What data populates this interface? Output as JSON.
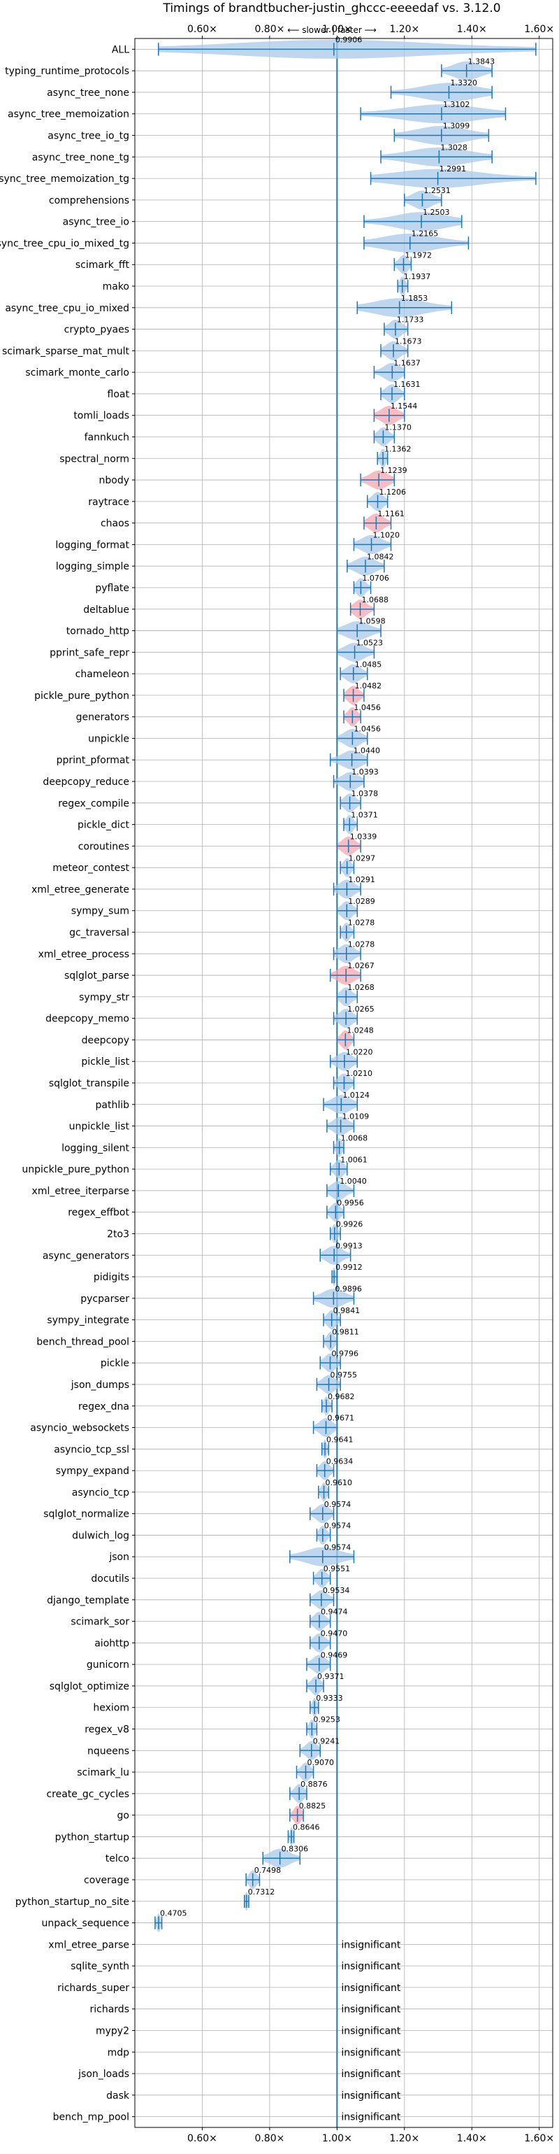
{
  "chart_data": {
    "type": "violin",
    "title": "Timings of brandtbucher-justin_ghccc-eeeedaf vs. 3.12.0",
    "subtitle": "⟵ slower | faster ⟶",
    "xlim": [
      0.4,
      1.64
    ],
    "xticks": [
      0.6,
      0.8,
      1.0,
      1.2,
      1.4,
      1.6
    ],
    "xtick_labels": [
      "0.60×",
      "0.80×",
      "1.00×",
      "1.20×",
      "1.40×",
      "1.60×"
    ],
    "reference_line": 1.0,
    "grid": true,
    "insignificant_label": "insignificant",
    "colors": {
      "violin": "#a8c8e8",
      "highlight": "#f4a6b0",
      "line": "#1f77b4",
      "grid": "#b0b0b0"
    },
    "benchmarks": [
      {
        "name": "ALL",
        "value": 0.9906,
        "min": 0.47,
        "max": 1.59,
        "label": "0.9906"
      },
      {
        "name": "typing_runtime_protocols",
        "value": 1.3843,
        "min": 1.31,
        "max": 1.46,
        "label": "1.3843"
      },
      {
        "name": "async_tree_none",
        "value": 1.332,
        "min": 1.16,
        "max": 1.46,
        "label": "1.3320"
      },
      {
        "name": "async_tree_memoization",
        "value": 1.3102,
        "min": 1.07,
        "max": 1.5,
        "label": "1.3102"
      },
      {
        "name": "async_tree_io_tg",
        "value": 1.3099,
        "min": 1.17,
        "max": 1.45,
        "label": "1.3099"
      },
      {
        "name": "async_tree_none_tg",
        "value": 1.3028,
        "min": 1.13,
        "max": 1.46,
        "label": "1.3028"
      },
      {
        "name": "async_tree_memoization_tg",
        "value": 1.2991,
        "min": 1.1,
        "max": 1.59,
        "label": "1.2991"
      },
      {
        "name": "comprehensions",
        "value": 1.2531,
        "min": 1.2,
        "max": 1.31,
        "label": "1.2531"
      },
      {
        "name": "async_tree_io",
        "value": 1.2503,
        "min": 1.08,
        "max": 1.37,
        "label": "1.2503"
      },
      {
        "name": "async_tree_cpu_io_mixed_tg",
        "value": 1.2165,
        "min": 1.08,
        "max": 1.39,
        "label": "1.2165"
      },
      {
        "name": "scimark_fft",
        "value": 1.1972,
        "min": 1.17,
        "max": 1.22,
        "label": "1.1972"
      },
      {
        "name": "mako",
        "value": 1.1937,
        "min": 1.18,
        "max": 1.21,
        "label": "1.1937"
      },
      {
        "name": "async_tree_cpu_io_mixed",
        "value": 1.1853,
        "min": 1.06,
        "max": 1.34,
        "label": "1.1853"
      },
      {
        "name": "crypto_pyaes",
        "value": 1.1733,
        "min": 1.14,
        "max": 1.21,
        "label": "1.1733"
      },
      {
        "name": "scimark_sparse_mat_mult",
        "value": 1.1673,
        "min": 1.13,
        "max": 1.21,
        "label": "1.1673"
      },
      {
        "name": "scimark_monte_carlo",
        "value": 1.1637,
        "min": 1.11,
        "max": 1.2,
        "label": "1.1637"
      },
      {
        "name": "float",
        "value": 1.1631,
        "min": 1.13,
        "max": 1.2,
        "label": "1.1631"
      },
      {
        "name": "tomli_loads",
        "value": 1.1544,
        "min": 1.11,
        "max": 1.2,
        "label": "1.1544",
        "highlight": true
      },
      {
        "name": "fannkuch",
        "value": 1.137,
        "min": 1.11,
        "max": 1.17,
        "label": "1.1370"
      },
      {
        "name": "spectral_norm",
        "value": 1.1362,
        "min": 1.12,
        "max": 1.15,
        "label": "1.1362"
      },
      {
        "name": "nbody",
        "value": 1.1239,
        "min": 1.07,
        "max": 1.17,
        "label": "1.1239",
        "highlight": true
      },
      {
        "name": "raytrace",
        "value": 1.1206,
        "min": 1.09,
        "max": 1.15,
        "label": "1.1206"
      },
      {
        "name": "chaos",
        "value": 1.1161,
        "min": 1.08,
        "max": 1.16,
        "label": "1.1161",
        "highlight": true
      },
      {
        "name": "logging_format",
        "value": 1.102,
        "min": 1.05,
        "max": 1.16,
        "label": "1.1020"
      },
      {
        "name": "logging_simple",
        "value": 1.0842,
        "min": 1.03,
        "max": 1.14,
        "label": "1.0842"
      },
      {
        "name": "pyflate",
        "value": 1.0706,
        "min": 1.05,
        "max": 1.1,
        "label": "1.0706"
      },
      {
        "name": "deltablue",
        "value": 1.0688,
        "min": 1.04,
        "max": 1.11,
        "label": "1.0688",
        "highlight": true
      },
      {
        "name": "tornado_http",
        "value": 1.0598,
        "min": 1.0,
        "max": 1.13,
        "label": "1.0598"
      },
      {
        "name": "pprint_safe_repr",
        "value": 1.0523,
        "min": 1.0,
        "max": 1.11,
        "label": "1.0523"
      },
      {
        "name": "chameleon",
        "value": 1.0485,
        "min": 1.01,
        "max": 1.09,
        "label": "1.0485"
      },
      {
        "name": "pickle_pure_python",
        "value": 1.0482,
        "min": 1.02,
        "max": 1.08,
        "label": "1.0482",
        "highlight": true
      },
      {
        "name": "generators",
        "value": 1.0456,
        "min": 1.02,
        "max": 1.07,
        "label": "1.0456",
        "highlight": true
      },
      {
        "name": "unpickle",
        "value": 1.0456,
        "min": 1.0,
        "max": 1.09,
        "label": "1.0456"
      },
      {
        "name": "pprint_pformat",
        "value": 1.044,
        "min": 0.98,
        "max": 1.09,
        "label": "1.0440"
      },
      {
        "name": "deepcopy_reduce",
        "value": 1.0393,
        "min": 0.99,
        "max": 1.08,
        "label": "1.0393"
      },
      {
        "name": "regex_compile",
        "value": 1.0378,
        "min": 1.01,
        "max": 1.07,
        "label": "1.0378"
      },
      {
        "name": "pickle_dict",
        "value": 1.0371,
        "min": 1.02,
        "max": 1.06,
        "label": "1.0371"
      },
      {
        "name": "coroutines",
        "value": 1.0339,
        "min": 1.0,
        "max": 1.07,
        "label": "1.0339",
        "highlight": true
      },
      {
        "name": "meteor_contest",
        "value": 1.0297,
        "min": 1.01,
        "max": 1.05,
        "label": "1.0297"
      },
      {
        "name": "xml_etree_generate",
        "value": 1.0291,
        "min": 0.99,
        "max": 1.07,
        "label": "1.0291"
      },
      {
        "name": "sympy_sum",
        "value": 1.0289,
        "min": 1.0,
        "max": 1.06,
        "label": "1.0289"
      },
      {
        "name": "gc_traversal",
        "value": 1.0278,
        "min": 1.01,
        "max": 1.05,
        "label": "1.0278"
      },
      {
        "name": "xml_etree_process",
        "value": 1.0278,
        "min": 0.99,
        "max": 1.07,
        "label": "1.0278"
      },
      {
        "name": "sqlglot_parse",
        "value": 1.0267,
        "min": 0.98,
        "max": 1.07,
        "label": "1.0267",
        "highlight": true
      },
      {
        "name": "sympy_str",
        "value": 1.0268,
        "min": 1.0,
        "max": 1.06,
        "label": "1.0268"
      },
      {
        "name": "deepcopy_memo",
        "value": 1.0265,
        "min": 0.99,
        "max": 1.06,
        "label": "1.0265"
      },
      {
        "name": "deepcopy",
        "value": 1.0248,
        "min": 1.0,
        "max": 1.05,
        "label": "1.0248",
        "highlight": true
      },
      {
        "name": "pickle_list",
        "value": 1.022,
        "min": 0.98,
        "max": 1.06,
        "label": "1.0220"
      },
      {
        "name": "sqlglot_transpile",
        "value": 1.021,
        "min": 0.99,
        "max": 1.05,
        "label": "1.0210"
      },
      {
        "name": "pathlib",
        "value": 1.0124,
        "min": 0.96,
        "max": 1.06,
        "label": "1.0124"
      },
      {
        "name": "unpickle_list",
        "value": 1.0109,
        "min": 0.97,
        "max": 1.05,
        "label": "1.0109"
      },
      {
        "name": "logging_silent",
        "value": 1.0068,
        "min": 0.99,
        "max": 1.02,
        "label": "1.0068"
      },
      {
        "name": "unpickle_pure_python",
        "value": 1.0061,
        "min": 0.98,
        "max": 1.03,
        "label": "1.0061"
      },
      {
        "name": "xml_etree_iterparse",
        "value": 1.004,
        "min": 0.97,
        "max": 1.05,
        "label": "1.0040"
      },
      {
        "name": "regex_effbot",
        "value": 0.9956,
        "min": 0.97,
        "max": 1.02,
        "label": "0.9956"
      },
      {
        "name": "2to3",
        "value": 0.9926,
        "min": 0.98,
        "max": 1.01,
        "label": "0.9926"
      },
      {
        "name": "async_generators",
        "value": 0.9913,
        "min": 0.95,
        "max": 1.04,
        "label": "0.9913"
      },
      {
        "name": "pidigits",
        "value": 0.9912,
        "min": 0.985,
        "max": 1.0,
        "label": "0.9912"
      },
      {
        "name": "pycparser",
        "value": 0.9896,
        "min": 0.93,
        "max": 1.05,
        "label": "0.9896"
      },
      {
        "name": "sympy_integrate",
        "value": 0.9841,
        "min": 0.96,
        "max": 1.01,
        "label": "0.9841"
      },
      {
        "name": "bench_thread_pool",
        "value": 0.9811,
        "min": 0.96,
        "max": 1.0,
        "label": "0.9811"
      },
      {
        "name": "pickle",
        "value": 0.9796,
        "min": 0.95,
        "max": 1.01,
        "label": "0.9796"
      },
      {
        "name": "json_dumps",
        "value": 0.9755,
        "min": 0.94,
        "max": 1.01,
        "label": "0.9755"
      },
      {
        "name": "regex_dna",
        "value": 0.9682,
        "min": 0.955,
        "max": 0.985,
        "label": "0.9682"
      },
      {
        "name": "asyncio_websockets",
        "value": 0.9671,
        "min": 0.93,
        "max": 1.0,
        "label": "0.9671"
      },
      {
        "name": "asyncio_tcp_ssl",
        "value": 0.9641,
        "min": 0.955,
        "max": 0.975,
        "label": "0.9641"
      },
      {
        "name": "sympy_expand",
        "value": 0.9634,
        "min": 0.94,
        "max": 0.99,
        "label": "0.9634"
      },
      {
        "name": "asyncio_tcp",
        "value": 0.961,
        "min": 0.945,
        "max": 0.975,
        "label": "0.9610"
      },
      {
        "name": "sqlglot_normalize",
        "value": 0.9574,
        "min": 0.92,
        "max": 0.99,
        "label": "0.9574"
      },
      {
        "name": "dulwich_log",
        "value": 0.9574,
        "min": 0.94,
        "max": 0.98,
        "label": "0.9574"
      },
      {
        "name": "json",
        "value": 0.9574,
        "min": 0.86,
        "max": 1.05,
        "label": "0.9574"
      },
      {
        "name": "docutils",
        "value": 0.9551,
        "min": 0.93,
        "max": 0.98,
        "label": "0.9551"
      },
      {
        "name": "django_template",
        "value": 0.9534,
        "min": 0.92,
        "max": 0.99,
        "label": "0.9534"
      },
      {
        "name": "scimark_sor",
        "value": 0.9474,
        "min": 0.92,
        "max": 0.98,
        "label": "0.9474"
      },
      {
        "name": "aiohttp",
        "value": 0.947,
        "min": 0.92,
        "max": 0.98,
        "label": "0.9470"
      },
      {
        "name": "gunicorn",
        "value": 0.9469,
        "min": 0.91,
        "max": 0.98,
        "label": "0.9469"
      },
      {
        "name": "sqlglot_optimize",
        "value": 0.9371,
        "min": 0.91,
        "max": 0.96,
        "label": "0.9371"
      },
      {
        "name": "hexiom",
        "value": 0.9333,
        "min": 0.92,
        "max": 0.945,
        "label": "0.9333"
      },
      {
        "name": "regex_v8",
        "value": 0.9253,
        "min": 0.91,
        "max": 0.94,
        "label": "0.9253"
      },
      {
        "name": "nqueens",
        "value": 0.9241,
        "min": 0.89,
        "max": 0.95,
        "label": "0.9241"
      },
      {
        "name": "scimark_lu",
        "value": 0.907,
        "min": 0.88,
        "max": 0.93,
        "label": "0.9070"
      },
      {
        "name": "create_gc_cycles",
        "value": 0.8876,
        "min": 0.86,
        "max": 0.91,
        "label": "0.8876"
      },
      {
        "name": "go",
        "value": 0.8825,
        "min": 0.86,
        "max": 0.9,
        "label": "0.8825",
        "highlight": true
      },
      {
        "name": "python_startup",
        "value": 0.8646,
        "min": 0.855,
        "max": 0.872,
        "label": "0.8646"
      },
      {
        "name": "telco",
        "value": 0.8306,
        "min": 0.78,
        "max": 0.89,
        "label": "0.8306"
      },
      {
        "name": "coverage",
        "value": 0.7498,
        "min": 0.73,
        "max": 0.77,
        "label": "0.7498"
      },
      {
        "name": "python_startup_no_site",
        "value": 0.7312,
        "min": 0.725,
        "max": 0.738,
        "label": "0.7312"
      },
      {
        "name": "unpack_sequence",
        "value": 0.4705,
        "min": 0.46,
        "max": 0.48,
        "label": "0.4705"
      },
      {
        "name": "xml_etree_parse",
        "insignificant": true
      },
      {
        "name": "sqlite_synth",
        "insignificant": true
      },
      {
        "name": "richards_super",
        "insignificant": true
      },
      {
        "name": "richards",
        "insignificant": true
      },
      {
        "name": "mypy2",
        "insignificant": true
      },
      {
        "name": "mdp",
        "insignificant": true
      },
      {
        "name": "json_loads",
        "insignificant": true
      },
      {
        "name": "dask",
        "insignificant": true
      },
      {
        "name": "bench_mp_pool",
        "insignificant": true
      }
    ]
  }
}
